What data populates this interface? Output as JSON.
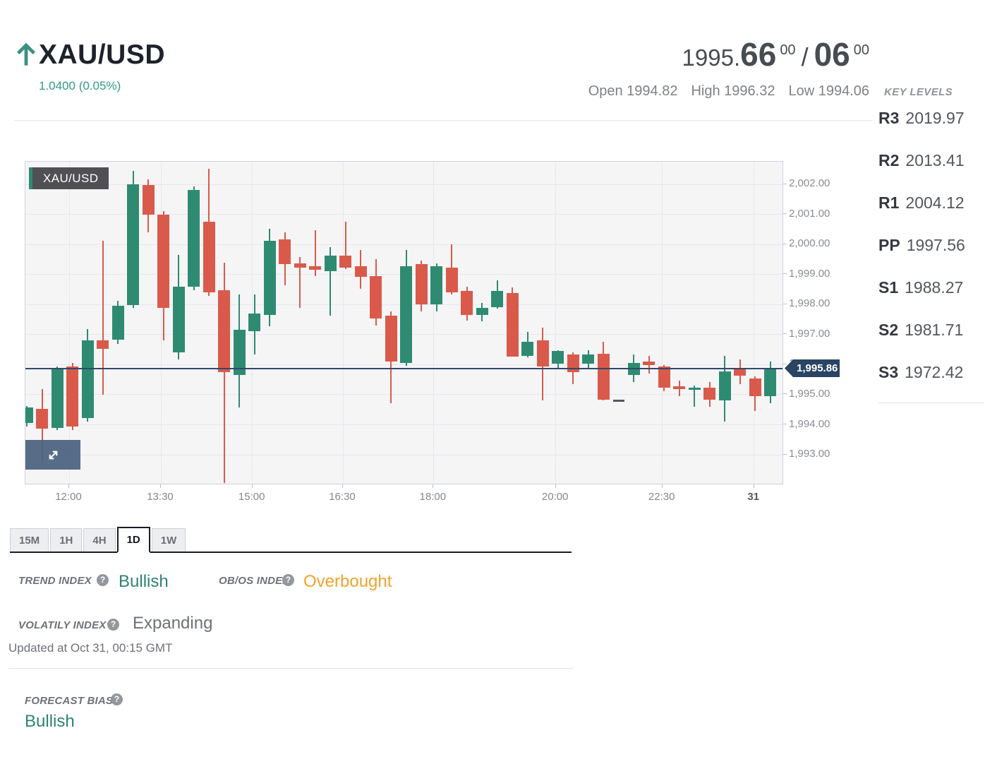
{
  "header": {
    "symbol": "XAU/USD",
    "change": "1.0400 (0.05%)",
    "quote": {
      "stem": "1995.",
      "bid": "66",
      "bid_pips": "00",
      "separator": "/",
      "ask": "06",
      "ask_pips": "00"
    },
    "stats": [
      {
        "label": "Open 1994.82"
      },
      {
        "label": "High 1996.32"
      },
      {
        "label": "Low 1994.06"
      }
    ]
  },
  "key_levels": {
    "title": "KEY LEVELS",
    "rows": [
      {
        "label": "R3",
        "value": "2019.97"
      },
      {
        "label": "R2",
        "value": "2013.41"
      },
      {
        "label": "R1",
        "value": "2004.12"
      },
      {
        "label": "PP",
        "value": "1997.56"
      },
      {
        "label": "S1",
        "value": "1988.27"
      },
      {
        "label": "S2",
        "value": "1981.71"
      },
      {
        "label": "S3",
        "value": "1972.42"
      }
    ]
  },
  "chart_data": {
    "type": "candlestick",
    "watermark": "XAU/USD",
    "price_line": {
      "value": 1995.86,
      "label": "1,995.86"
    },
    "y_axis": {
      "min": 1993,
      "max": 2002,
      "step": 1,
      "tick_prices": [
        2002,
        2001,
        2000,
        1999,
        1998,
        1997,
        1996,
        1995,
        1994,
        1993
      ],
      "tick_labels": [
        "2,002.00",
        "2,001.00",
        "2,000.00",
        "1,999.00",
        "1,998.00",
        "1,997.00",
        "1,996.00",
        "1,995.00",
        "1,994.00",
        "1,993.00"
      ]
    },
    "x_axis": {
      "tick_labels": [
        "12:00",
        "13:30",
        "15:00",
        "16:30",
        "18:00",
        "20:00",
        "22:30",
        "31"
      ],
      "bold_last": true
    },
    "colors": {
      "up": "#2e8b72",
      "down": "#d95a4b",
      "neutral": "#54575d",
      "price_line": "#32486b"
    },
    "candles": [
      [
        1994.06,
        1994.62,
        1993.95,
        1994.57
      ],
      [
        1994.53,
        1995.19,
        1992.73,
        1993.86
      ],
      [
        1993.9,
        1995.95,
        1993.82,
        1995.86
      ],
      [
        1995.94,
        1996.06,
        1993.82,
        1993.94
      ],
      [
        1994.22,
        1997.19,
        1994.1,
        1996.8
      ],
      [
        1996.8,
        2000.13,
        1995.0,
        1996.52
      ],
      [
        1996.84,
        1998.13,
        1996.68,
        1997.97
      ],
      [
        1997.97,
        2002.44,
        1997.89,
        2002.01
      ],
      [
        2001.97,
        2002.16,
        2000.4,
        2000.99
      ],
      [
        2000.99,
        2001.11,
        1996.8,
        1997.89
      ],
      [
        1996.41,
        1999.66,
        1996.17,
        1998.6
      ],
      [
        1998.6,
        2001.93,
        1998.48,
        2001.81
      ],
      [
        2000.75,
        2002.52,
        1998.29,
        1998.41
      ],
      [
        1998.48,
        1999.39,
        1992.06,
        1995.74
      ],
      [
        1995.66,
        1998.33,
        1994.57,
        1997.15
      ],
      [
        1997.11,
        1998.33,
        1996.33,
        1997.7
      ],
      [
        1997.66,
        2000.52,
        1997.27,
        2000.13
      ],
      [
        2000.17,
        2000.4,
        1998.64,
        1999.35
      ],
      [
        1999.38,
        1999.58,
        1997.9,
        1999.23
      ],
      [
        1999.27,
        2000.48,
        1998.95,
        1999.15
      ],
      [
        1999.11,
        1999.9,
        1997.62,
        1999.62
      ],
      [
        1999.62,
        2000.76,
        1999.19,
        1999.23
      ],
      [
        1999.27,
        1999.82,
        1998.52,
        1998.92
      ],
      [
        1998.95,
        1999.5,
        1997.31,
        1997.54
      ],
      [
        1997.62,
        1997.77,
        1994.72,
        1996.09
      ],
      [
        1996.05,
        1999.82,
        1995.96,
        1999.27
      ],
      [
        1999.35,
        1999.46,
        1997.78,
        1998.01
      ],
      [
        1998.01,
        1999.38,
        1997.78,
        1999.27
      ],
      [
        1999.23,
        2000.01,
        1998.33,
        1998.41
      ],
      [
        1998.45,
        1998.6,
        1997.47,
        1997.66
      ],
      [
        1997.66,
        1998.05,
        1997.43,
        1997.9
      ],
      [
        1997.9,
        1998.8,
        1997.86,
        1998.45
      ],
      [
        1998.38,
        1998.56,
        1996.27,
        1996.27
      ],
      [
        1996.29,
        1997.08,
        1996.25,
        1996.76
      ],
      [
        1996.8,
        1997.23,
        1994.8,
        1995.94
      ],
      [
        1996.02,
        1996.48,
        1995.9,
        1996.45
      ],
      [
        1996.33,
        1996.4,
        1995.35,
        1995.74
      ],
      [
        1996.02,
        1996.49,
        1995.86,
        1996.33
      ],
      [
        1996.37,
        1996.76,
        1994.8,
        1994.84
      ],
      [
        1994.81,
        1994.85,
        1994.77,
        1994.81
      ],
      [
        1995.66,
        1996.33,
        1995.43,
        1996.06
      ],
      [
        1996.1,
        1996.29,
        1995.7,
        1995.98
      ],
      [
        1995.94,
        1995.98,
        1995.11,
        1995.23
      ],
      [
        1995.28,
        1995.47,
        1994.96,
        1995.18
      ],
      [
        1995.16,
        1995.3,
        1994.6,
        1995.23
      ],
      [
        1995.23,
        1995.43,
        1994.6,
        1994.84
      ],
      [
        1994.81,
        1996.29,
        1994.1,
        1995.78
      ],
      [
        1995.86,
        1996.18,
        1995.35,
        1995.63
      ],
      [
        1995.55,
        1995.6,
        1994.45,
        1994.96
      ],
      [
        1994.96,
        1996.1,
        1994.72,
        1995.86
      ]
    ],
    "neutral_indices": [
      39
    ]
  },
  "timeframes": {
    "tabs": [
      "15M",
      "1H",
      "4H",
      "1D",
      "1W"
    ],
    "active": "1D"
  },
  "panel": {
    "trend": {
      "label": "TREND INDEX",
      "value": "Bullish"
    },
    "obos": {
      "label": "OB/OS INDEX",
      "value": "Overbought"
    },
    "volatility": {
      "label": "VOLATILY INDEX",
      "value": "Expanding"
    },
    "updated": "Updated at Oct 31, 00:15 GMT",
    "forecast": {
      "label": "FORECAST BIAS",
      "value": "Bullish"
    },
    "help_glyph": "?"
  }
}
